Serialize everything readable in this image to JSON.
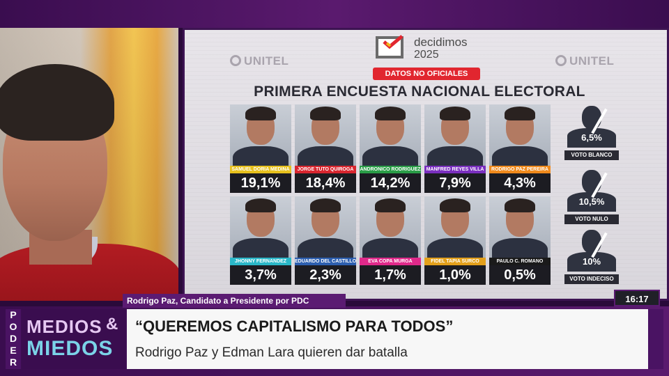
{
  "graphic": {
    "brand_left": "UNITEL",
    "brand_right": "UNITEL",
    "logo_name": "decidimos",
    "logo_year": "2025",
    "badge": "DATOS NO OFICIALES",
    "headline": "PRIMERA ENCUESTA NACIONAL ELECTORAL",
    "candidates_row1": [
      {
        "name": "SAMUEL DORIA MEDINA",
        "pct": "19,1%",
        "color": "#e7c11d"
      },
      {
        "name": "JORGE TUTO QUIROGA",
        "pct": "18,4%",
        "color": "#d8262f"
      },
      {
        "name": "ANDRONICO RODRIGUEZ",
        "pct": "14,2%",
        "color": "#2a9d47"
      },
      {
        "name": "MANFRED REYES VILLA",
        "pct": "7,9%",
        "color": "#7a2fbf"
      },
      {
        "name": "RODRIGO PAZ PEREIRA",
        "pct": "4,3%",
        "color": "#f08a1c"
      }
    ],
    "candidates_row2": [
      {
        "name": "JHONNY FERNANDEZ",
        "pct": "3,7%",
        "color": "#2ab7c8"
      },
      {
        "name": "EDUARDO DEL CASTILLO",
        "pct": "2,3%",
        "color": "#2d5fb0"
      },
      {
        "name": "EVA COPA MURGA",
        "pct": "1,7%",
        "color": "#e0298a"
      },
      {
        "name": "FIDEL TAPIA SURCO",
        "pct": "1,0%",
        "color": "#e3a01b"
      },
      {
        "name": "PAULO C. ROMANO",
        "pct": "0,5%",
        "color": "#1a1a1a"
      }
    ],
    "votes": [
      {
        "label": "VOTO BLANCO",
        "pct": "6,5%"
      },
      {
        "label": "VOTO NULO",
        "pct": "10,5%"
      },
      {
        "label": "VOTO INDECISO",
        "pct": "10%"
      }
    ]
  },
  "lower_third": {
    "speaker": "Rodrigo Paz, Candidato a Presidente por PDC",
    "time": "16:17",
    "side_label": "PODER",
    "show_line1": "MEDIOS",
    "show_amp": "&",
    "show_line2": "MIEDOS",
    "quote": "“QUEREMOS CAPITALISMO PARA TODOS”",
    "subtitle": "Rodrigo Paz y Edman Lara quieren dar batalla"
  }
}
